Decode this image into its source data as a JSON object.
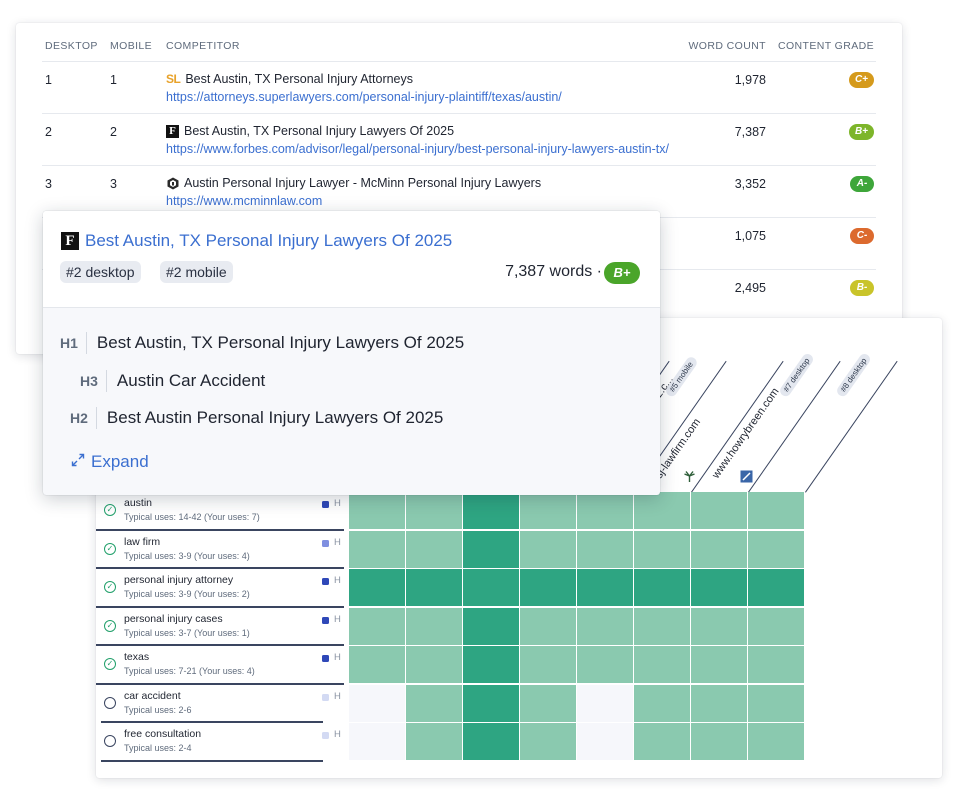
{
  "table": {
    "headers": {
      "desktop": "DESKTOP",
      "mobile": "MOBILE",
      "competitor": "COMPETITOR",
      "word_count": "WORD COUNT",
      "content_grade": "CONTENT GRADE"
    },
    "rows": [
      {
        "desktop": "1",
        "mobile": "1",
        "favicon": "SL",
        "title": "Best Austin, TX Personal Injury Attorneys",
        "url": "https://attorneys.superlawyers.com/personal-injury-plaintiff/texas/austin/",
        "word_count": "1,978",
        "grade": "C+",
        "grade_color": "#d59a1c"
      },
      {
        "desktop": "2",
        "mobile": "2",
        "favicon": "F",
        "title": "Best Austin, TX Personal Injury Lawyers Of 2025",
        "url": "https://www.forbes.com/advisor/legal/personal-injury/best-personal-injury-lawyers-austin-tx/",
        "word_count": "7,387",
        "grade": "B+",
        "grade_color": "#7db52a"
      },
      {
        "desktop": "3",
        "mobile": "3",
        "favicon": "hex",
        "title": "Austin Personal Injury Lawyer - McMinn Personal Injury Lawyers",
        "url": "https://www.mcminnlaw.com",
        "word_count": "3,352",
        "grade": "A-",
        "grade_color": "#3ea63a"
      },
      {
        "desktop": "",
        "mobile": "",
        "favicon": "",
        "title": "",
        "url": "",
        "word_count": "1,075",
        "grade": "C-",
        "grade_color": "#dc6a2e"
      },
      {
        "desktop": "",
        "mobile": "",
        "favicon": "",
        "title": "",
        "url": "",
        "word_count": "2,495",
        "grade": "B-",
        "grade_color": "#c9c42a"
      }
    ]
  },
  "popup": {
    "title": "Best Austin, TX Personal Injury Lawyers Of 2025",
    "tag_desktop": "#2 desktop",
    "tag_mobile": "#2 mobile",
    "words": "7,387 words ·",
    "grade": "B+",
    "headings": [
      {
        "level": "H1",
        "text": "Best Austin, TX Personal Injury Lawyers Of 2025"
      },
      {
        "level": "H3",
        "text": "Austin Car Accident"
      },
      {
        "level": "H2",
        "text": "Best Austin Personal Injury Lawyers Of 2025"
      }
    ],
    "expand_label": "Expand"
  },
  "heatmap": {
    "columns": [
      {
        "label": "",
        "pill": ""
      },
      {
        "label": "",
        "pill": ""
      },
      {
        "label": "rdavis.com",
        "pill": "#3 desktop"
      },
      {
        "label": "",
        "pill": "#4 desktop"
      },
      {
        "label": "www.lorenzandlorenz.c...",
        "pill": "#5 mobile"
      },
      {
        "label": "sj-lawfirm.com",
        "pill": ""
      },
      {
        "label": "www.howrybreen.com",
        "pill": "#7 desktop"
      },
      {
        "label": "",
        "pill": "#8 desktop"
      }
    ],
    "keywords": [
      {
        "name": "austin",
        "typical": "Typical uses: 14-42 (Your uses: 7)",
        "used": true,
        "marker_color": "#2f48b8",
        "h": "H"
      },
      {
        "name": "law firm",
        "typical": "Typical uses: 3-9 (Your uses: 4)",
        "used": true,
        "marker_color": "#7f8fe0",
        "h": "H"
      },
      {
        "name": "personal injury attorney",
        "typical": "Typical uses: 3-9 (Your uses: 2)",
        "used": true,
        "marker_color": "#2f48b8",
        "h": "H"
      },
      {
        "name": "personal injury cases",
        "typical": "Typical uses: 3-7 (Your uses: 1)",
        "used": true,
        "marker_color": "#2f48b8",
        "h": "H"
      },
      {
        "name": "texas",
        "typical": "Typical uses: 7-21 (Your uses: 4)",
        "used": true,
        "marker_color": "#2f48b8",
        "h": "H"
      },
      {
        "name": "car accident",
        "typical": "Typical uses: 2-6",
        "used": false,
        "marker_color": "#d3daf3",
        "h": "H"
      },
      {
        "name": "free consultation",
        "typical": "Typical uses: 2-4",
        "used": false,
        "marker_color": "#d3daf3",
        "h": "H"
      }
    ],
    "levels": [
      [
        1,
        1,
        2,
        1,
        1,
        1,
        1,
        1
      ],
      [
        1,
        1,
        2,
        1,
        1,
        1,
        1,
        1
      ],
      [
        2,
        2,
        2,
        2,
        2,
        2,
        2,
        2
      ],
      [
        1,
        1,
        2,
        1,
        1,
        1,
        1,
        1
      ],
      [
        1,
        1,
        2,
        1,
        1,
        1,
        1,
        1
      ],
      [
        0,
        1,
        2,
        1,
        0,
        1,
        1,
        1
      ],
      [
        0,
        1,
        2,
        1,
        0,
        1,
        1,
        1
      ]
    ],
    "level_colors": [
      "#f6f7fb",
      "#8ac9af",
      "#2ea582"
    ]
  }
}
